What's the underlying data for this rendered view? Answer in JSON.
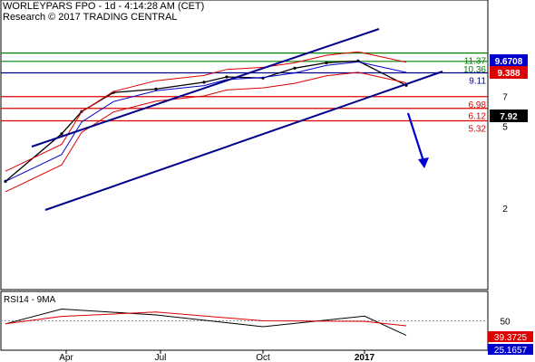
{
  "header": {
    "line1": "WORLEYPARS FPO - 1d - 4:14:28 AM (CET)",
    "line2": "Research © 2017 TRADING CENTRAL"
  },
  "chart_data": {
    "type": "line",
    "title": "WORLEYPARS FPO - 1d - 4:14:28 AM (CET)",
    "scale": "log",
    "ylim": [
      1.6,
      13
    ],
    "x_tick_labels": [
      "Apr",
      "Jul",
      "Oct",
      "2017"
    ],
    "y_tick_labels": [
      "2",
      "5",
      "7"
    ],
    "last_price": "7.92",
    "price_series_points": [
      [
        "Mar 2016",
        2.7
      ],
      [
        "Apr 2016",
        4.6
      ],
      [
        "May 2016",
        5.9
      ],
      [
        "Jun 2016",
        7.3
      ],
      [
        "Jul 2016",
        7.6
      ],
      [
        "Aug 2016",
        8.2
      ],
      [
        "Sep 2016",
        8.7
      ],
      [
        "Oct 2016",
        8.6
      ],
      [
        "Nov 2016",
        9.6
      ],
      [
        "Dec 2016",
        10.2
      ],
      [
        "Jan 2017",
        10.4
      ],
      [
        "Feb 2017",
        7.92
      ]
    ],
    "horizontal_levels": [
      {
        "value": 11.37,
        "label": "11.37",
        "color": "#008000"
      },
      {
        "value": 10.36,
        "label": "10.36",
        "color": "#008000"
      },
      {
        "value": 9.11,
        "label": "9.11",
        "color": "#00008b"
      },
      {
        "value": 6.98,
        "label": "6.98",
        "color": "#dd0000"
      },
      {
        "value": 6.12,
        "label": "6.12",
        "color": "#dd0000"
      },
      {
        "value": 5.32,
        "label": "5.32",
        "color": "#dd0000"
      }
    ],
    "price_tags": [
      {
        "value": "9.6708",
        "color": "#0000cc"
      },
      {
        "value": "9.388",
        "color": "#dd0000"
      },
      {
        "value": "7.92",
        "color": "#000000"
      }
    ],
    "indicator": {
      "title": "RSI14 - 9MA",
      "levels": [
        "50"
      ],
      "tags": [
        {
          "value": "39.3725",
          "color": "#dd0000"
        },
        {
          "value": "25.1657",
          "color": "#0000cc"
        }
      ],
      "rsi_points": [
        [
          "Mar 2016",
          45
        ],
        [
          "Apr 2016",
          70
        ],
        [
          "Jul 2016",
          60
        ],
        [
          "Oct 2016",
          40
        ],
        [
          "Jan 2017",
          58
        ],
        [
          "Feb 2017",
          25.17
        ]
      ]
    },
    "colors": {
      "price": "#000000",
      "bands": "#dd0000",
      "moving_average": "#0000cc",
      "channel": "#00008b",
      "projection_arrow": "#0000cc"
    }
  }
}
